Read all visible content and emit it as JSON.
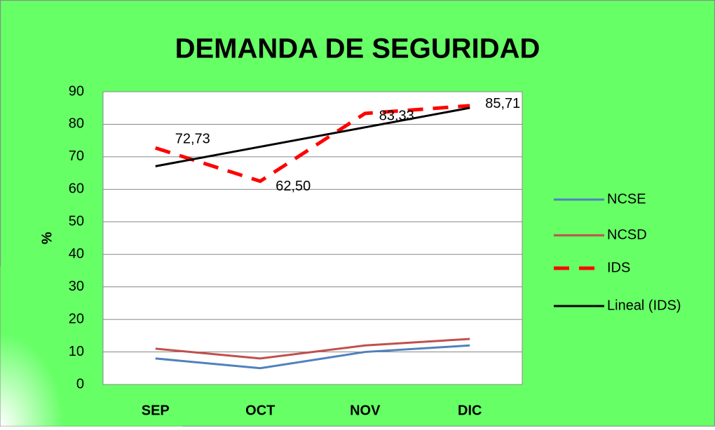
{
  "chart_data": {
    "type": "line",
    "title": "DEMANDA DE SEGURIDAD",
    "y_label": "%",
    "categories": [
      "SEP",
      "OCT",
      "NOV",
      "DIC"
    ],
    "series": [
      {
        "name": "NCSE",
        "color": "#4f81bd",
        "values": [
          8,
          5,
          10,
          12
        ]
      },
      {
        "name": "NCSD",
        "color": "#c0504d",
        "values": [
          11,
          8,
          12,
          14
        ]
      },
      {
        "name": "IDS",
        "color": "#ff0000",
        "dashed": true,
        "values": [
          72.73,
          62.5,
          83.33,
          85.71
        ],
        "value_labels": [
          "72,73",
          "62,50",
          "83,33",
          "85,71"
        ]
      },
      {
        "name": "Lineal (IDS)",
        "color": "#000000",
        "values": [
          67.1,
          73.08,
          79.06,
          85.04
        ]
      }
    ],
    "ylim": [
      0,
      90
    ],
    "yticks": [
      0,
      10,
      20,
      30,
      40,
      50,
      60,
      70,
      80,
      90
    ],
    "grid": true,
    "legend": "right"
  }
}
